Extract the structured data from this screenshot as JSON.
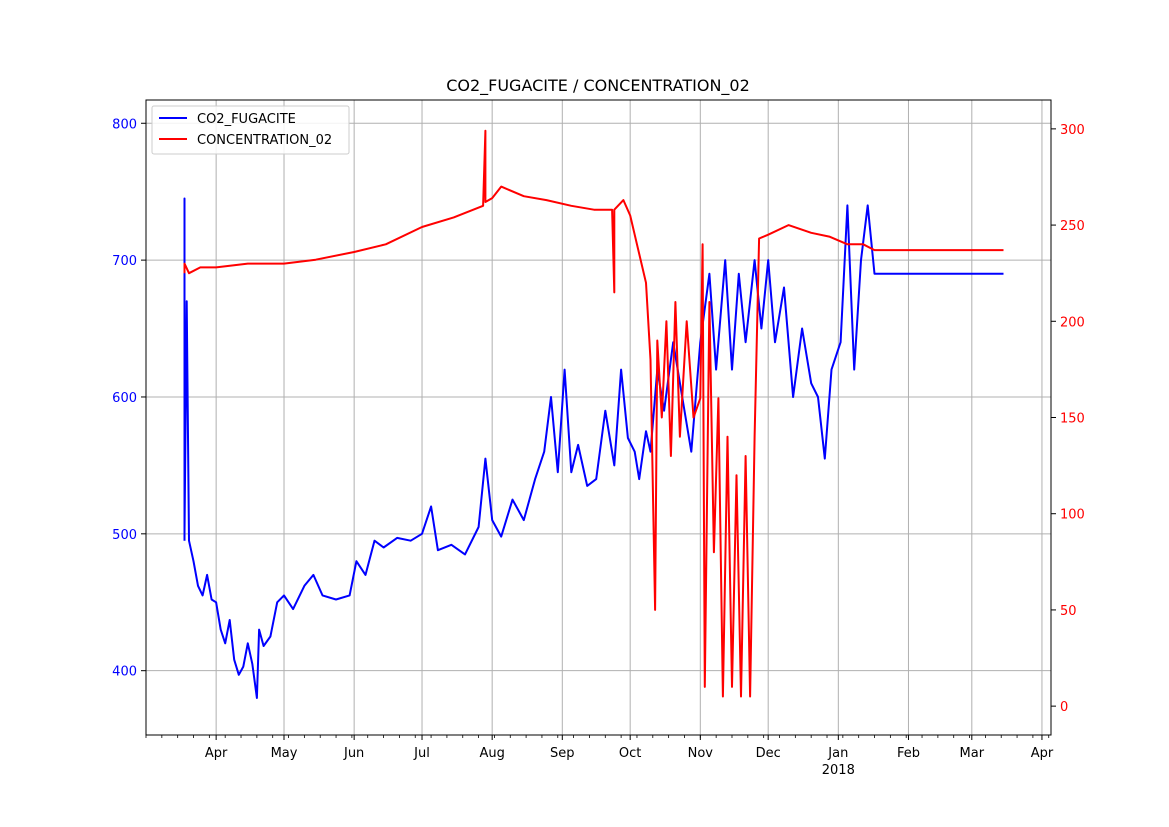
{
  "chart_data": {
    "type": "line",
    "title": "CO2_FUGACITE / CONCENTRATION_02",
    "legend_placement": "top-left",
    "grid": true,
    "x_axis": {
      "type": "date",
      "range": [
        "2017-03-01",
        "2018-04-05"
      ],
      "tick_labels": [
        {
          "date": "2017-04-01",
          "label": "Apr"
        },
        {
          "date": "2017-05-01",
          "label": "May"
        },
        {
          "date": "2017-06-01",
          "label": "Jun"
        },
        {
          "date": "2017-07-01",
          "label": "Jul"
        },
        {
          "date": "2017-08-01",
          "label": "Aug"
        },
        {
          "date": "2017-09-01",
          "label": "Sep"
        },
        {
          "date": "2017-10-01",
          "label": "Oct"
        },
        {
          "date": "2017-11-01",
          "label": "Nov"
        },
        {
          "date": "2017-12-01",
          "label": "Dec"
        },
        {
          "date": "2018-01-01",
          "label": "Jan"
        },
        {
          "date": "2018-02-01",
          "label": "Feb"
        },
        {
          "date": "2018-03-01",
          "label": "Mar"
        },
        {
          "date": "2018-04-01",
          "label": "Apr"
        }
      ],
      "year_label": {
        "date": "2018-01-01",
        "label": "2018"
      }
    },
    "y_left": {
      "ylim": [
        353,
        817
      ],
      "ticks": [
        400,
        500,
        600,
        700,
        800
      ],
      "color": "#0000ff"
    },
    "y_right": {
      "ylim": [
        -15,
        315
      ],
      "ticks": [
        0,
        50,
        100,
        150,
        200,
        250,
        300
      ],
      "color": "#ff0000"
    },
    "series": [
      {
        "name": "CO2_FUGACITE",
        "color": "#0000ff",
        "axis": "left",
        "points": [
          [
            "2017-03-18",
            495
          ],
          [
            "2017-03-18",
            745
          ],
          [
            "2017-03-18",
            500
          ],
          [
            "2017-03-19",
            670
          ],
          [
            "2017-03-20",
            495
          ],
          [
            "2017-03-22",
            480
          ],
          [
            "2017-03-24",
            462
          ],
          [
            "2017-03-26",
            455
          ],
          [
            "2017-03-28",
            470
          ],
          [
            "2017-03-30",
            452
          ],
          [
            "2017-04-01",
            450
          ],
          [
            "2017-04-03",
            430
          ],
          [
            "2017-04-05",
            420
          ],
          [
            "2017-04-07",
            437
          ],
          [
            "2017-04-09",
            408
          ],
          [
            "2017-04-11",
            397
          ],
          [
            "2017-04-13",
            403
          ],
          [
            "2017-04-15",
            420
          ],
          [
            "2017-04-17",
            405
          ],
          [
            "2017-04-19",
            380
          ],
          [
            "2017-04-20",
            430
          ],
          [
            "2017-04-22",
            418
          ],
          [
            "2017-04-25",
            425
          ],
          [
            "2017-04-28",
            450
          ],
          [
            "2017-05-01",
            455
          ],
          [
            "2017-05-05",
            445
          ],
          [
            "2017-05-10",
            462
          ],
          [
            "2017-05-14",
            470
          ],
          [
            "2017-05-18",
            455
          ],
          [
            "2017-05-24",
            452
          ],
          [
            "2017-05-30",
            455
          ],
          [
            "2017-06-02",
            480
          ],
          [
            "2017-06-06",
            470
          ],
          [
            "2017-06-10",
            495
          ],
          [
            "2017-06-14",
            490
          ],
          [
            "2017-06-20",
            497
          ],
          [
            "2017-06-26",
            495
          ],
          [
            "2017-07-01",
            500
          ],
          [
            "2017-07-05",
            520
          ],
          [
            "2017-07-08",
            488
          ],
          [
            "2017-07-14",
            492
          ],
          [
            "2017-07-20",
            485
          ],
          [
            "2017-07-26",
            505
          ],
          [
            "2017-07-29",
            555
          ],
          [
            "2017-08-01",
            510
          ],
          [
            "2017-08-05",
            498
          ],
          [
            "2017-08-10",
            525
          ],
          [
            "2017-08-15",
            510
          ],
          [
            "2017-08-20",
            540
          ],
          [
            "2017-08-24",
            560
          ],
          [
            "2017-08-27",
            600
          ],
          [
            "2017-08-30",
            545
          ],
          [
            "2017-09-02",
            620
          ],
          [
            "2017-09-05",
            545
          ],
          [
            "2017-09-08",
            565
          ],
          [
            "2017-09-12",
            535
          ],
          [
            "2017-09-16",
            540
          ],
          [
            "2017-09-20",
            590
          ],
          [
            "2017-09-24",
            550
          ],
          [
            "2017-09-27",
            620
          ],
          [
            "2017-09-30",
            570
          ],
          [
            "2017-10-03",
            560
          ],
          [
            "2017-10-05",
            540
          ],
          [
            "2017-10-08",
            575
          ],
          [
            "2017-10-10",
            560
          ],
          [
            "2017-10-13",
            620
          ],
          [
            "2017-10-16",
            590
          ],
          [
            "2017-10-20",
            640
          ],
          [
            "2017-10-24",
            600
          ],
          [
            "2017-10-28",
            560
          ],
          [
            "2017-11-01",
            640
          ],
          [
            "2017-11-05",
            690
          ],
          [
            "2017-11-08",
            620
          ],
          [
            "2017-11-12",
            700
          ],
          [
            "2017-11-15",
            620
          ],
          [
            "2017-11-18",
            690
          ],
          [
            "2017-11-21",
            640
          ],
          [
            "2017-11-25",
            700
          ],
          [
            "2017-11-28",
            650
          ],
          [
            "2017-12-01",
            700
          ],
          [
            "2017-12-04",
            640
          ],
          [
            "2017-12-08",
            680
          ],
          [
            "2017-12-12",
            600
          ],
          [
            "2017-12-16",
            650
          ],
          [
            "2017-12-20",
            610
          ],
          [
            "2017-12-23",
            600
          ],
          [
            "2017-12-26",
            555
          ],
          [
            "2017-12-29",
            620
          ],
          [
            "2018-01-02",
            640
          ],
          [
            "2018-01-05",
            740
          ],
          [
            "2018-01-08",
            620
          ],
          [
            "2018-01-11",
            700
          ],
          [
            "2018-01-14",
            740
          ],
          [
            "2018-01-17",
            690
          ],
          [
            "2018-03-15",
            690
          ]
        ]
      },
      {
        "name": "CONCENTRATION_02",
        "color": "#ff0000",
        "axis": "right",
        "points": [
          [
            "2017-03-18",
            225
          ],
          [
            "2017-03-18",
            230
          ],
          [
            "2017-03-20",
            225
          ],
          [
            "2017-03-25",
            228
          ],
          [
            "2017-04-01",
            228
          ],
          [
            "2017-04-15",
            230
          ],
          [
            "2017-05-01",
            230
          ],
          [
            "2017-05-15",
            232
          ],
          [
            "2017-06-01",
            236
          ],
          [
            "2017-06-15",
            240
          ],
          [
            "2017-07-01",
            249
          ],
          [
            "2017-07-15",
            254
          ],
          [
            "2017-07-28",
            260
          ],
          [
            "2017-07-29",
            299
          ],
          [
            "2017-07-29",
            262
          ],
          [
            "2017-08-01",
            264
          ],
          [
            "2017-08-05",
            270
          ],
          [
            "2017-08-15",
            265
          ],
          [
            "2017-08-25",
            263
          ],
          [
            "2017-09-05",
            260
          ],
          [
            "2017-09-15",
            258
          ],
          [
            "2017-09-23",
            258
          ],
          [
            "2017-09-24",
            215
          ],
          [
            "2017-09-24",
            258
          ],
          [
            "2017-09-28",
            263
          ],
          [
            "2017-10-01",
            255
          ],
          [
            "2017-10-03",
            245
          ],
          [
            "2017-10-06",
            230
          ],
          [
            "2017-10-08",
            220
          ],
          [
            "2017-10-10",
            180
          ],
          [
            "2017-10-12",
            50
          ],
          [
            "2017-10-13",
            190
          ],
          [
            "2017-10-15",
            150
          ],
          [
            "2017-10-17",
            200
          ],
          [
            "2017-10-19",
            130
          ],
          [
            "2017-10-21",
            210
          ],
          [
            "2017-10-23",
            140
          ],
          [
            "2017-10-26",
            200
          ],
          [
            "2017-10-29",
            150
          ],
          [
            "2017-11-01",
            160
          ],
          [
            "2017-11-02",
            240
          ],
          [
            "2017-11-03",
            10
          ],
          [
            "2017-11-05",
            210
          ],
          [
            "2017-11-07",
            80
          ],
          [
            "2017-11-09",
            160
          ],
          [
            "2017-11-11",
            5
          ],
          [
            "2017-11-13",
            140
          ],
          [
            "2017-11-15",
            10
          ],
          [
            "2017-11-17",
            120
          ],
          [
            "2017-11-19",
            5
          ],
          [
            "2017-11-21",
            130
          ],
          [
            "2017-11-23",
            5
          ],
          [
            "2017-11-25",
            140
          ],
          [
            "2017-11-27",
            243
          ],
          [
            "2017-12-01",
            245
          ],
          [
            "2017-12-10",
            250
          ],
          [
            "2017-12-20",
            246
          ],
          [
            "2017-12-28",
            244
          ],
          [
            "2018-01-05",
            240
          ],
          [
            "2018-01-12",
            240
          ],
          [
            "2018-01-17",
            237
          ],
          [
            "2018-03-15",
            237
          ]
        ]
      }
    ]
  }
}
